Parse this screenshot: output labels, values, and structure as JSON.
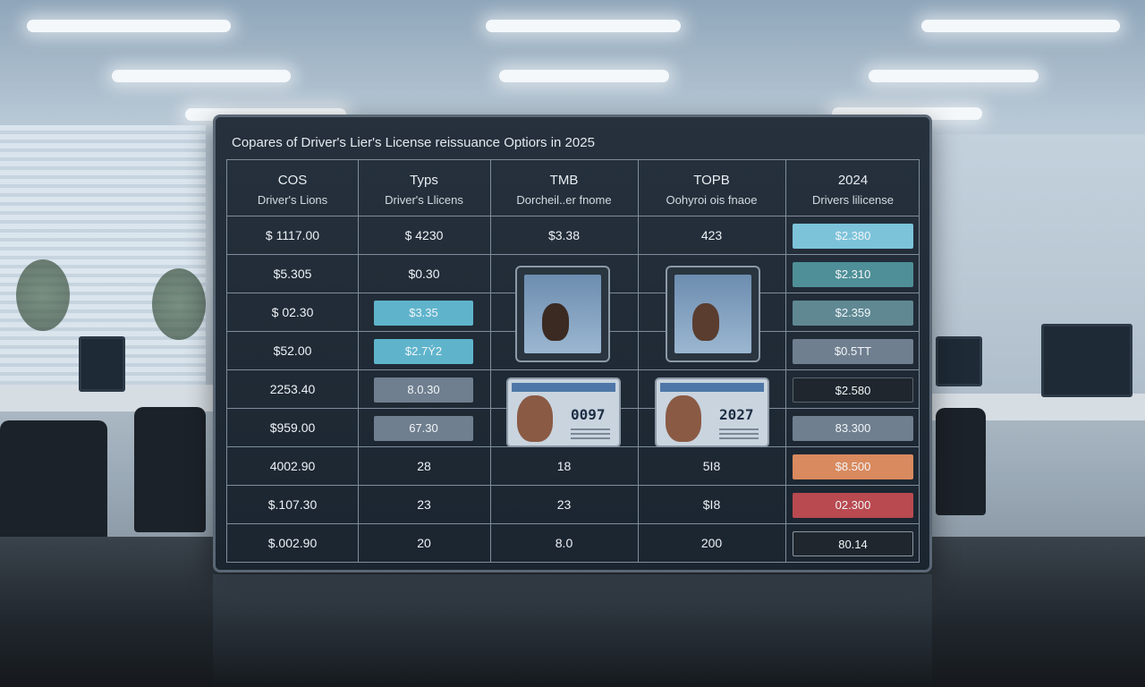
{
  "panel": {
    "title": "Copares of Driver's Lier's License reissuance Optiors in 2025"
  },
  "headers": [
    {
      "line1": "COS",
      "line2": "Driver's Lions"
    },
    {
      "line1": "Typs",
      "line2": "Driver's Llicens"
    },
    {
      "line1": "TMB",
      "line2": "Dorcheil..er fnome"
    },
    {
      "line1": "TOPB",
      "line2": "Oohyroi ois fnaoe"
    },
    {
      "line1": "2024",
      "line2": "Drivers lilicense"
    }
  ],
  "rows": [
    {
      "c1": "$ 1117.00",
      "c2": "$ 4230",
      "c3": "$3.38",
      "c4": "423",
      "c5": "$2.380"
    },
    {
      "c1": "$5.305",
      "c2": "$0.30",
      "c3": "",
      "c4": "",
      "c5": "$2.310"
    },
    {
      "c1": "$ 02.30",
      "c2": "$3.35",
      "c3": "",
      "c4": "",
      "c5": "$2.359"
    },
    {
      "c1": "$52.00",
      "c2": "$2.7Ý2",
      "c3": "",
      "c4": "",
      "c5": "$0.5TT"
    },
    {
      "c1": "2253.40",
      "c2": "8.0.30",
      "c3": "",
      "c4": "",
      "c5": "$2.580"
    },
    {
      "c1": "$959.00",
      "c2": "67.30",
      "c3": "",
      "c4": "",
      "c5": "83.300"
    },
    {
      "c1": "4002.90",
      "c2": "28",
      "c3": "18",
      "c4": "5I8",
      "c5": "$8.500"
    },
    {
      "c1": "$.107.30",
      "c2": "23",
      "c3": "23",
      "c4": "$I8",
      "c5": "02.300"
    },
    {
      "c1": "$.002.90",
      "c2": "20",
      "c3": "8.0",
      "c4": "200",
      "c5": "80.14"
    }
  ],
  "license_cards": {
    "left_number": "0097",
    "right_number": "2027"
  },
  "colors": {
    "pill_blue": "#5fb4cc",
    "pill_teal": "#4f8f97",
    "pill_gray": "#6f7f8f",
    "pill_dark": "#1f262d",
    "pill_orange": "#d98a5e",
    "pill_red": "#b84a50"
  }
}
